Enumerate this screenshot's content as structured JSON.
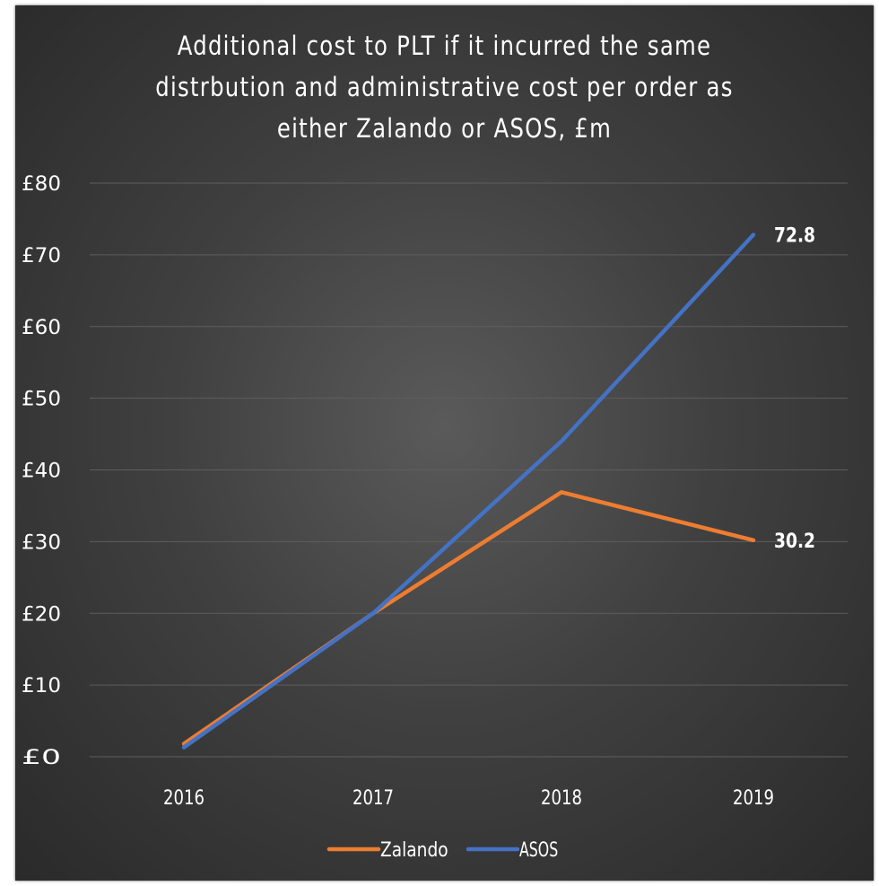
{
  "chart_data": {
    "type": "line",
    "title": "Additional cost to PLT if it incurred the same distrbution and administrative cost per order as either Zalando or ASOS, £m",
    "title_lines": [
      "Additional cost to PLT if it incurred the same",
      "distrbution and administrative cost per order as",
      "either Zalando or ASOS, £m"
    ],
    "categories": [
      "2016",
      "2017",
      "2018",
      "2019"
    ],
    "series": [
      {
        "name": "Zalando",
        "color": "#ed7d31",
        "values": [
          1.8,
          20.0,
          36.9,
          30.2
        ],
        "end_label": "30.2"
      },
      {
        "name": "ASOS",
        "color": "#4472c4",
        "values": [
          1.3,
          20.0,
          44.0,
          72.8
        ],
        "end_label": "72.8"
      }
    ],
    "ylim": [
      0,
      80
    ],
    "y_ticks": [
      0,
      10,
      20,
      30,
      40,
      50,
      60,
      70,
      80
    ],
    "y_tick_labels": [
      "£0",
      "£10",
      "£20",
      "£30",
      "£40",
      "£50",
      "£60",
      "£70",
      "£80"
    ],
    "grid": true,
    "legend_position": "bottom",
    "colors": {
      "background": "#404040",
      "gridline": "#5e5e5e",
      "text": "#ffffff"
    }
  }
}
